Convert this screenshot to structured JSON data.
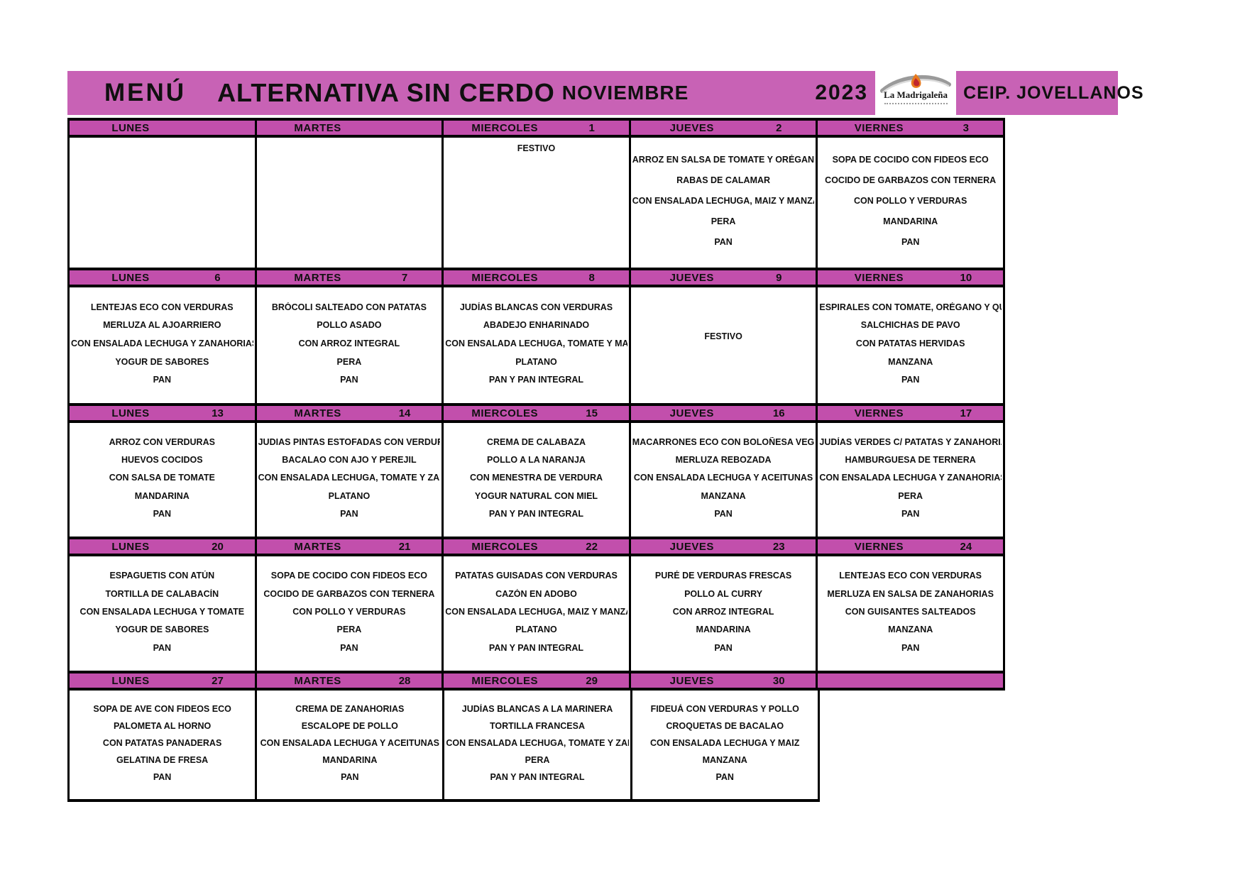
{
  "title": {
    "menu_label": "MENÚ",
    "subtitle": "ALTERNATIVA SIN CERDO",
    "month": "NOVIEMBRE",
    "year": "2023",
    "school": "CEIP. JOVELLANOS"
  },
  "logo": {
    "name": "La Madrigaleña"
  },
  "colors": {
    "band_pink": "#c862b5",
    "header_pink": "#c24fac",
    "border_black": "#000000"
  },
  "weeks": [
    {
      "days": [
        {
          "day": "LUNES",
          "date": "",
          "lines": []
        },
        {
          "day": "MARTES",
          "date": "",
          "lines": []
        },
        {
          "day": "MIERCOLES",
          "date": "1",
          "valign": "top",
          "lines": [
            "FESTIVO"
          ]
        },
        {
          "day": "JUEVES",
          "date": "2",
          "lines": [
            "ARROZ EN SALSA DE TOMATE Y ORÉGANO",
            "RABAS DE CALAMAR",
            "CON ENSALADA LECHUGA, MAIZ Y MANZANA",
            "PERA",
            "PAN"
          ]
        },
        {
          "day": "VIERNES",
          "date": "3",
          "lines": [
            "SOPA DE COCIDO CON FIDEOS ECO",
            "COCIDO DE GARBAZOS CON TERNERA",
            "CON POLLO Y VERDURAS",
            "MANDARINA",
            "PAN"
          ]
        }
      ]
    },
    {
      "days": [
        {
          "day": "LUNES",
          "date": "6",
          "lines": [
            "LENTEJAS ECO CON VERDURAS",
            "MERLUZA AL AJOARRIERO",
            "CON ENSALADA LECHUGA Y ZANAHORIAS",
            "YOGUR DE SABORES",
            "PAN"
          ]
        },
        {
          "day": "MARTES",
          "date": "7",
          "lines": [
            "BRÓCOLI SALTEADO CON PATATAS",
            "POLLO ASADO",
            "CON ARROZ INTEGRAL",
            "PERA",
            "PAN"
          ]
        },
        {
          "day": "MIERCOLES",
          "date": "8",
          "lines": [
            "JUDÍAS BLANCAS CON VERDURAS",
            "ABADEJO ENHARINADO",
            "CON ENSALADA LECHUGA, TOMATE Y MAIZ",
            "PLATANO",
            "PAN Y PAN INTEGRAL"
          ]
        },
        {
          "day": "JUEVES",
          "date": "9",
          "valign": "center",
          "lines": [
            "FESTIVO"
          ]
        },
        {
          "day": "VIERNES",
          "date": "10",
          "lines": [
            "ESPIRALES CON TOMATE, ORÉGANO Y QUESO",
            "SALCHICHAS DE PAVO",
            "CON PATATAS HERVIDAS",
            "MANZANA",
            "PAN"
          ]
        }
      ]
    },
    {
      "days": [
        {
          "day": "LUNES",
          "date": "13",
          "lines": [
            "ARROZ CON VERDURAS",
            "HUEVOS COCIDOS",
            "CON SALSA DE TOMATE",
            "MANDARINA",
            "PAN"
          ]
        },
        {
          "day": "MARTES",
          "date": "14",
          "lines": [
            "JUDIAS PINTAS ESTOFADAS CON VERDURAS",
            "BACALAO CON AJO Y PEREJIL",
            "CON ENSALADA LECHUGA, TOMATE Y ZANAHORIAS",
            "PLATANO",
            "PAN"
          ]
        },
        {
          "day": "MIERCOLES",
          "date": "15",
          "lines": [
            "CREMA DE CALABAZA",
            "POLLO A LA NARANJA",
            "CON MENESTRA DE VERDURA",
            "YOGUR NATURAL CON MIEL",
            "PAN Y PAN INTEGRAL"
          ]
        },
        {
          "day": "JUEVES",
          "date": "16",
          "lines": [
            "MACARRONES ECO CON BOLOÑESA VEGETAL",
            "MERLUZA REBOZADA",
            "CON ENSALADA LECHUGA Y ACEITUNAS",
            "MANZANA",
            "PAN"
          ]
        },
        {
          "day": "VIERNES",
          "date": "17",
          "lines": [
            "JUDÍAS VERDES C/ PATATAS Y ZANAHORIAS",
            "HAMBURGUESA DE TERNERA",
            "CON ENSALADA LECHUGA Y ZANAHORIAS",
            "PERA",
            "PAN"
          ]
        }
      ]
    },
    {
      "days": [
        {
          "day": "LUNES",
          "date": "20",
          "lines": [
            "ESPAGUETIS CON ATÚN",
            "TORTILLA DE CALABACÍN",
            "CON ENSALADA LECHUGA Y TOMATE",
            "YOGUR DE SABORES",
            "PAN"
          ]
        },
        {
          "day": "MARTES",
          "date": "21",
          "lines": [
            "SOPA DE COCIDO CON FIDEOS ECO",
            "COCIDO DE GARBAZOS CON TERNERA",
            "CON POLLO Y VERDURAS",
            "PERA",
            "PAN"
          ]
        },
        {
          "day": "MIERCOLES",
          "date": "22",
          "lines": [
            "PATATAS GUISADAS CON VERDURAS",
            "CAZÓN EN ADOBO",
            "CON ENSALADA LECHUGA, MAIZ Y MANZANA",
            "PLATANO",
            "PAN Y PAN INTEGRAL"
          ]
        },
        {
          "day": "JUEVES",
          "date": "23",
          "lines": [
            "PURÉ DE VERDURAS FRESCAS",
            "POLLO AL CURRY",
            "CON ARROZ INTEGRAL",
            "MANDARINA",
            "PAN"
          ]
        },
        {
          "day": "VIERNES",
          "date": "24",
          "lines": [
            "LENTEJAS ECO CON VERDURAS",
            "MERLUZA EN SALSA DE ZANAHORIAS",
            "CON GUISANTES SALTEADOS",
            "MANZANA",
            "PAN"
          ]
        }
      ]
    },
    {
      "days": [
        {
          "day": "LUNES",
          "date": "27",
          "lines": [
            "SOPA DE AVE CON FIDEOS ECO",
            "PALOMETA AL HORNO",
            "CON PATATAS PANADERAS",
            "GELATINA DE FRESA",
            "PAN"
          ]
        },
        {
          "day": "MARTES",
          "date": "28",
          "lines": [
            "CREMA DE ZANAHORIAS",
            "ESCALOPE DE POLLO",
            "CON ENSALADA LECHUGA Y ACEITUNAS",
            "MANDARINA",
            "PAN"
          ]
        },
        {
          "day": "MIERCOLES",
          "date": "29",
          "lines": [
            "JUDÍAS BLANCAS A LA MARINERA",
            "TORTILLA FRANCESA",
            "CON ENSALADA LECHUGA, TOMATE Y ZANAHORIAS",
            "PERA",
            "PAN Y PAN INTEGRAL"
          ]
        },
        {
          "day": "JUEVES",
          "date": "30",
          "lines": [
            "FIDEUÁ CON VERDURAS Y POLLO",
            "CROQUETAS DE BACALAO",
            "CON ENSALADA LECHUGA Y MAIZ",
            "MANZANA",
            "PAN"
          ]
        },
        {
          "day": "",
          "date": "",
          "lines": []
        }
      ]
    }
  ]
}
